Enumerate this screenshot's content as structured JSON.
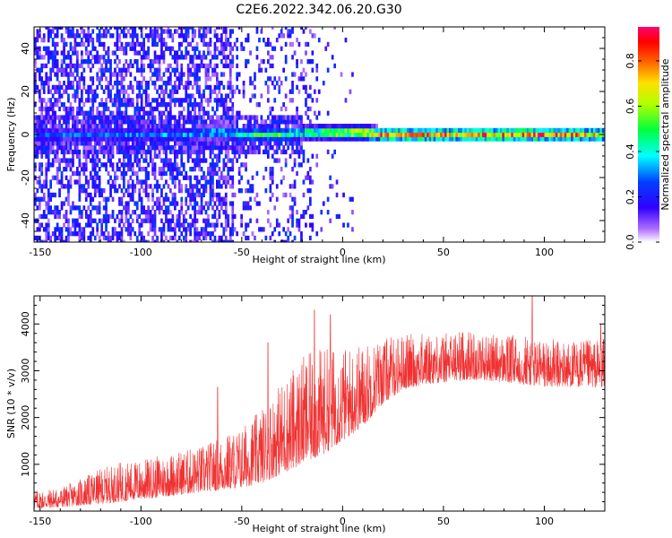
{
  "title": "C2E6.2022.342.06.20.G30",
  "chart_data": [
    {
      "type": "heatmap",
      "xlabel": "Height of straight line (km)",
      "ylabel": "Frequency (Hz)",
      "xlim": [
        -153,
        130
      ],
      "ylim": [
        -50,
        50
      ],
      "x_ticks": [
        -150,
        -100,
        -50,
        0,
        50,
        100
      ],
      "y_ticks": [
        -40,
        -20,
        0,
        20,
        40
      ],
      "colorbar": {
        "label": "Normalized spectral amplitude",
        "range": [
          0.0,
          0.95
        ],
        "ticks": [
          "0.0",
          "0.2",
          "0.4",
          "0.6",
          "0.8"
        ],
        "tick_values": [
          0.0,
          0.2,
          0.4,
          0.6,
          0.8
        ],
        "colors": [
          "#ffffff",
          "#5000ff",
          "#0000ff",
          "#00ffff",
          "#00ff00",
          "#ffff00",
          "#ff8000",
          "#ff0000",
          "#ff0080"
        ]
      },
      "ridge": {
        "x": [
          -150,
          -120,
          -100,
          -90,
          -80,
          -70,
          -60,
          -50,
          -40,
          -30,
          -20,
          -10,
          0,
          10,
          20,
          40,
          60,
          80,
          90,
          100,
          130
        ],
        "freq": [
          0,
          0,
          0,
          0,
          0,
          1,
          1,
          0,
          0,
          0,
          1,
          1,
          1,
          1,
          0,
          0,
          0,
          0,
          0,
          0,
          0
        ],
        "amplitude": [
          0.28,
          0.3,
          0.3,
          0.32,
          0.35,
          0.4,
          0.42,
          0.48,
          0.5,
          0.5,
          0.52,
          0.62,
          0.72,
          0.82,
          0.82,
          0.78,
          0.75,
          0.8,
          0.85,
          0.78,
          0.72
        ]
      }
    },
    {
      "type": "line",
      "xlabel": "Height of straight line (km)",
      "ylabel": "SNR (10 * v/v)",
      "xlim": [
        -153,
        130
      ],
      "ylim": [
        0,
        4600
      ],
      "x_ticks": [
        -150,
        -100,
        -50,
        0,
        50,
        100
      ],
      "y_ticks": [
        1000,
        2000,
        3000,
        4000
      ],
      "color": "#f03232",
      "envelope": {
        "x": [
          -153,
          -140,
          -130,
          -120,
          -110,
          -100,
          -90,
          -80,
          -70,
          -60,
          -50,
          -40,
          -30,
          -20,
          -10,
          0,
          10,
          20,
          30,
          40,
          50,
          60,
          70,
          80,
          90,
          100,
          110,
          120,
          130
        ],
        "low": [
          50,
          80,
          120,
          150,
          200,
          250,
          300,
          350,
          400,
          450,
          500,
          600,
          800,
          1000,
          1200,
          1500,
          1800,
          2300,
          2600,
          2700,
          2750,
          2800,
          2800,
          2750,
          2700,
          2650,
          2650,
          2650,
          2650
        ],
        "high": [
          450,
          500,
          700,
          900,
          1050,
          1100,
          1200,
          1300,
          1400,
          1600,
          1800,
          2200,
          2800,
          3300,
          3500,
          3500,
          3600,
          3700,
          3800,
          3800,
          3800,
          3900,
          3800,
          3750,
          3800,
          3700,
          3650,
          3650,
          3700
        ]
      },
      "spikes": [
        {
          "x": -62,
          "y": 2650
        },
        {
          "x": -37,
          "y": 3600
        },
        {
          "x": -14,
          "y": 4300
        },
        {
          "x": -6,
          "y": 4200
        },
        {
          "x": 94,
          "y": 4650
        },
        {
          "x": 128,
          "y": 4000
        }
      ]
    }
  ]
}
